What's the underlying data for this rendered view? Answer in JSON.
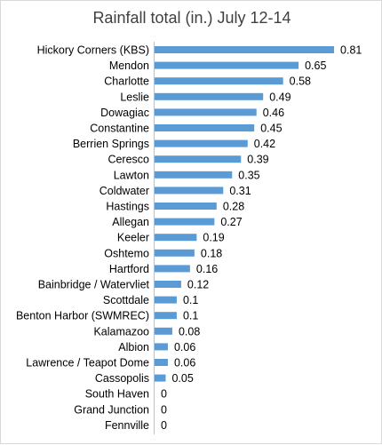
{
  "chart_data": {
    "type": "bar",
    "orientation": "horizontal",
    "title": "Rainfall total (in.) July 12-14",
    "xlabel": "",
    "ylabel": "",
    "xlim": [
      0,
      0.85
    ],
    "grid": false,
    "legend": "none",
    "bar_color": "#5B9BD5",
    "categories": [
      "Hickory Corners (KBS)",
      "Mendon",
      "Charlotte",
      "Leslie",
      "Dowagiac",
      "Constantine",
      "Berrien Springs",
      "Ceresco",
      "Lawton",
      "Coldwater",
      "Hastings",
      "Allegan",
      "Keeler",
      "Oshtemo",
      "Hartford",
      "Bainbridge / Watervliet",
      "Scottdale",
      "Benton Harbor (SWMREC)",
      "Kalamazoo",
      "Albion",
      "Lawrence / Teapot Dome",
      "Cassopolis",
      "South Haven",
      "Grand Junction",
      "Fennville"
    ],
    "values": [
      0.81,
      0.65,
      0.58,
      0.49,
      0.46,
      0.45,
      0.42,
      0.39,
      0.35,
      0.31,
      0.28,
      0.27,
      0.19,
      0.18,
      0.16,
      0.12,
      0.1,
      0.1,
      0.08,
      0.06,
      0.06,
      0.05,
      0,
      0,
      0
    ],
    "value_labels": [
      "0.81",
      "0.65",
      "0.58",
      "0.49",
      "0.46",
      "0.45",
      "0.42",
      "0.39",
      "0.35",
      "0.31",
      "0.28",
      "0.27",
      "0.19",
      "0.18",
      "0.16",
      "0.12",
      "0.1",
      "0.1",
      "0.08",
      "0.06",
      "0.06",
      "0.05",
      "0",
      "0",
      "0"
    ]
  }
}
